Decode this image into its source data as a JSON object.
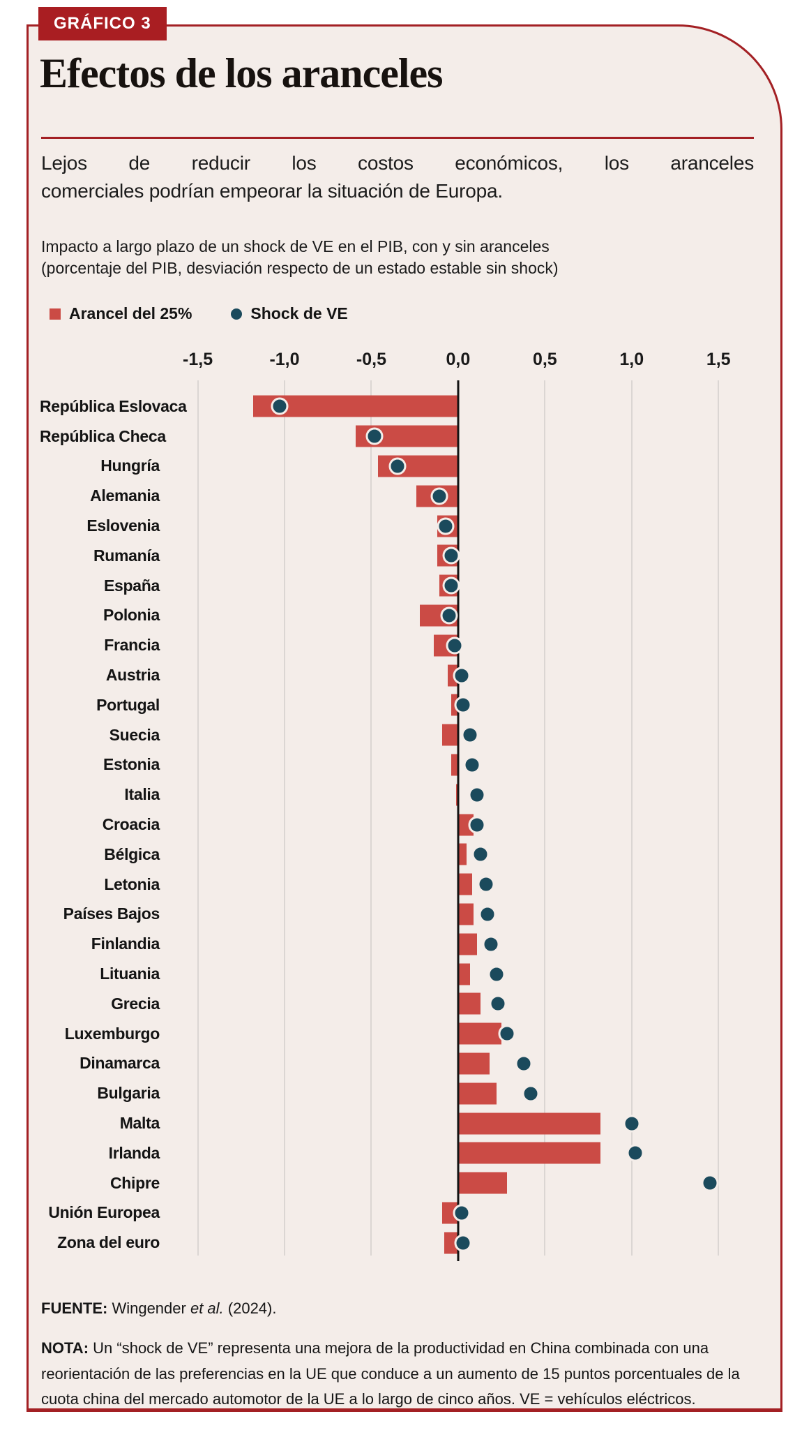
{
  "badge": "GRÁFICO 3",
  "title": "Efectos de los aranceles",
  "deck": {
    "line1": "Lejos de reducir los costos económicos, los aranceles",
    "line2": "comerciales podrían empeorar la situación de Europa."
  },
  "spec": {
    "line1": "Impacto a largo plazo de un shock de VE en el PIB, con y sin aranceles",
    "line2": "(porcentaje del PIB, desviación respecto de un estado estable sin shock)"
  },
  "legend": {
    "tariff_label": "Arancel del 25%",
    "shock_label": "Shock de VE"
  },
  "source": {
    "label": "FUENTE:",
    "pre": " Wingender ",
    "italic": "et al.",
    "post": " (2024)."
  },
  "note": {
    "label": "NOTA:",
    "text": " Un “shock de VE” representa una mejora de la productividad en China combinada con una reorientación de las preferencias en la UE que conduce a un aumento de 15 puntos porcentuales de la cuota china del mercado automotor de la UE a lo largo de cinco años. VE = vehículos eléctricos."
  },
  "colors": {
    "brand_red": "#A32024",
    "badge_red": "#A91E22",
    "bar_red": "#CB4B45",
    "dot_navy": "#1B4A5C",
    "card_bg": "#F4EDE9",
    "gridline": "#DBD6D3",
    "axis": "#141414"
  },
  "chart_data": {
    "type": "bar",
    "orientation": "horizontal",
    "title": "Impacto a largo plazo de un shock de VE en el PIB, con y sin aranceles",
    "xlabel": "porcentaje del PIB, desviación respecto de un estado estable sin shock",
    "xlim": [
      -1.663,
      1.704
    ],
    "grid": true,
    "axis_ticks": {
      "labels": [
        "-1,5",
        "-1,0",
        "-0,5",
        "0,0",
        "0,5",
        "1,0",
        "1,5"
      ],
      "values": [
        -1.5,
        -1.0,
        -0.5,
        0.0,
        0.5,
        1.0,
        1.5
      ]
    },
    "categories": [
      "República Eslovaca",
      "República Checa",
      "Hungría",
      "Alemania",
      "Eslovenia",
      "Rumanía",
      "España",
      "Polonia",
      "Francia",
      "Austria",
      "Portugal",
      "Suecia",
      "Estonia",
      "Italia",
      "Croacia",
      "Bélgica",
      "Letonia",
      "Países Bajos",
      "Finlandia",
      "Lituania",
      "Grecia",
      "Luxemburgo",
      "Dinamarca",
      "Bulgaria",
      "Malta",
      "Irlanda",
      "Chipre",
      "Unión Europea",
      "Zona del euro"
    ],
    "series": [
      {
        "name": "Arancel del 25%",
        "marker": "bar",
        "values": [
          -1.18,
          -0.59,
          -0.46,
          -0.24,
          -0.12,
          -0.12,
          -0.11,
          -0.22,
          -0.14,
          -0.06,
          -0.04,
          -0.09,
          -0.04,
          -0.01,
          0.09,
          0.05,
          0.08,
          0.09,
          0.11,
          0.07,
          0.13,
          0.25,
          0.18,
          0.22,
          0.82,
          0.82,
          0.28,
          -0.09,
          -0.08
        ]
      },
      {
        "name": "Shock de VE",
        "marker": "dot",
        "values": [
          -1.03,
          -0.48,
          -0.35,
          -0.11,
          -0.07,
          -0.04,
          -0.04,
          -0.05,
          -0.02,
          0.02,
          0.03,
          0.07,
          0.08,
          0.11,
          0.11,
          0.13,
          0.16,
          0.17,
          0.19,
          0.22,
          0.23,
          0.28,
          0.38,
          0.42,
          1.0,
          1.02,
          1.45,
          0.02,
          0.03
        ]
      }
    ]
  }
}
